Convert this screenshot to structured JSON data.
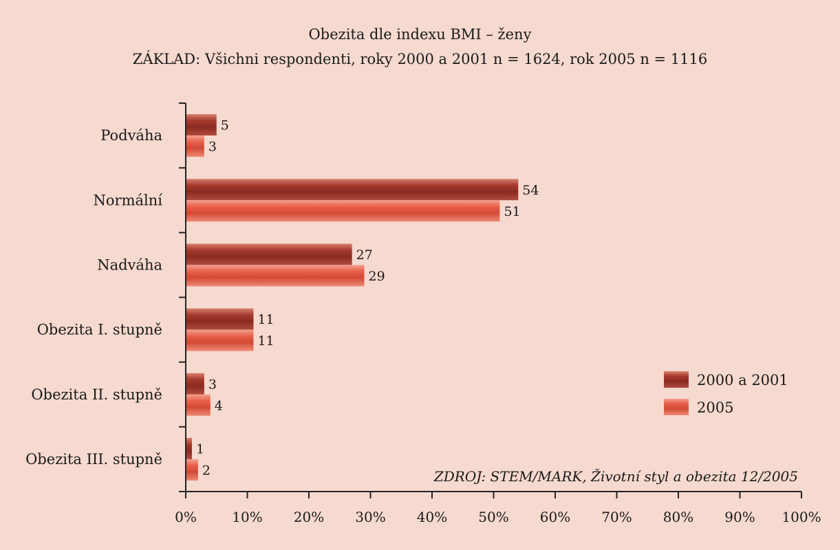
{
  "chart_data": {
    "type": "bar",
    "orientation": "horizontal",
    "title": "Obezita dle indexu BMI – ženy",
    "subtitle": "ZÁKLAD: Všichni respondenti, roky 2000 a 2001 n = 1624, rok 2005 n = 1116",
    "categories": [
      "Podváha",
      "Normální",
      "Nadváha",
      "Obezita I. stupně",
      "Obezita II. stupně",
      "Obezita III. stupně"
    ],
    "series": [
      {
        "name": "2000 a 2001",
        "values": [
          5,
          54,
          27,
          11,
          3,
          1
        ],
        "color": "#a63a2e"
      },
      {
        "name": "2005",
        "values": [
          3,
          51,
          29,
          11,
          4,
          2
        ],
        "color": "#e8604a"
      }
    ],
    "xlim": [
      0,
      100
    ],
    "xticks": [
      0,
      10,
      20,
      30,
      40,
      50,
      60,
      70,
      80,
      90,
      100
    ],
    "tick_suffix": "%",
    "grid": false,
    "legend_position": "right",
    "source": "ZDROJ: STEM/MARK, Životní styl a obezita 12/2005"
  }
}
